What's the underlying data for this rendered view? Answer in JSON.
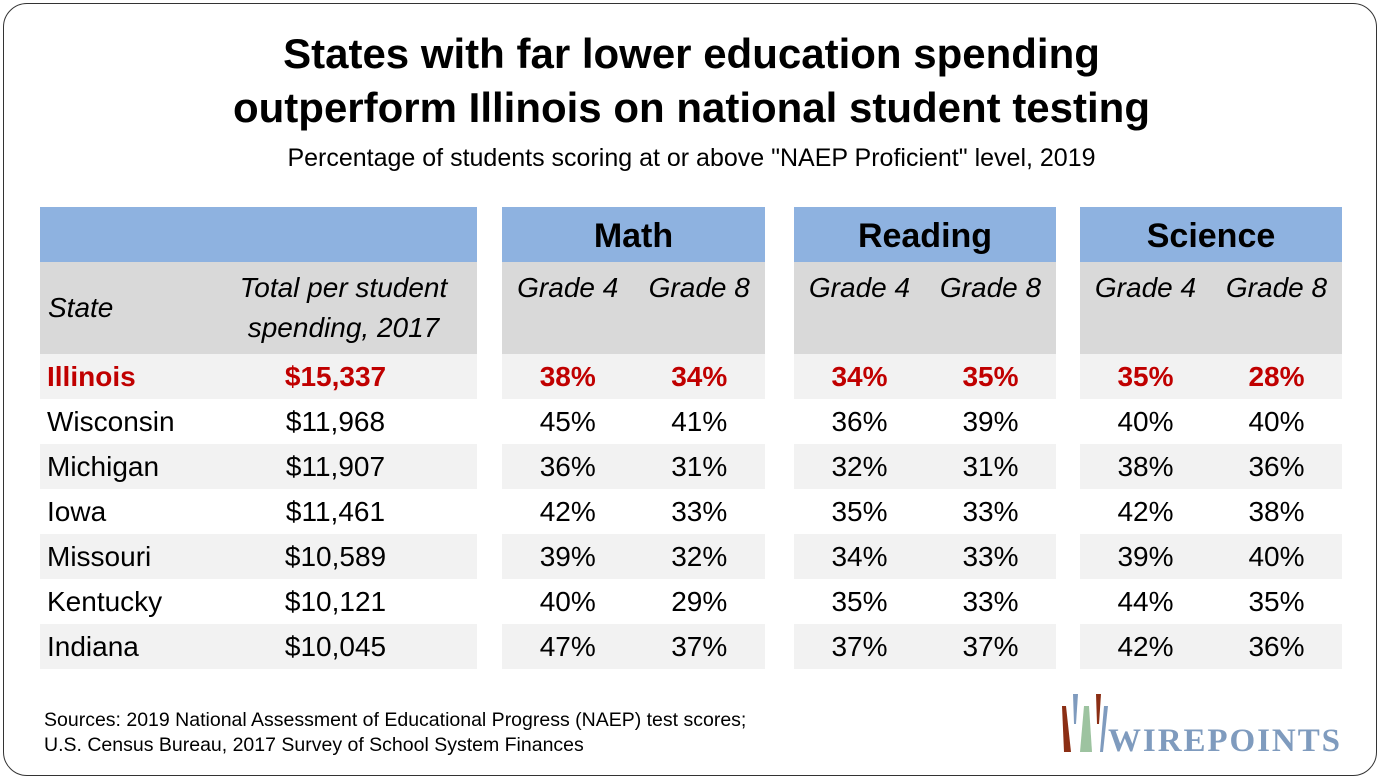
{
  "title_line1": "States with far lower education spending",
  "title_line2": "outperform Illinois on national student testing",
  "subtitle": "Percentage of students scoring at or above \"NAEP Proficient\" level, 2019",
  "headers": {
    "state": "State",
    "spending": "Total per student spending, 2017",
    "math": "Math",
    "reading": "Reading",
    "science": "Science",
    "grade4": "Grade 4",
    "grade8": "Grade 8"
  },
  "rows": [
    {
      "state": "Illinois",
      "spending": "$15,337",
      "math4": "38%",
      "math8": "34%",
      "read4": "34%",
      "read8": "35%",
      "sci4": "35%",
      "sci8": "28%"
    },
    {
      "state": "Wisconsin",
      "spending": "$11,968",
      "math4": "45%",
      "math8": "41%",
      "read4": "36%",
      "read8": "39%",
      "sci4": "40%",
      "sci8": "40%"
    },
    {
      "state": "Michigan",
      "spending": "$11,907",
      "math4": "36%",
      "math8": "31%",
      "read4": "32%",
      "read8": "31%",
      "sci4": "38%",
      "sci8": "36%"
    },
    {
      "state": "Iowa",
      "spending": "$11,461",
      "math4": "42%",
      "math8": "33%",
      "read4": "35%",
      "read8": "33%",
      "sci4": "42%",
      "sci8": "38%"
    },
    {
      "state": "Missouri",
      "spending": "$10,589",
      "math4": "39%",
      "math8": "32%",
      "read4": "34%",
      "read8": "33%",
      "sci4": "39%",
      "sci8": "40%"
    },
    {
      "state": "Kentucky",
      "spending": "$10,121",
      "math4": "40%",
      "math8": "29%",
      "read4": "35%",
      "read8": "33%",
      "sci4": "44%",
      "sci8": "35%"
    },
    {
      "state": "Indiana",
      "spending": "$10,045",
      "math4": "47%",
      "math8": "37%",
      "read4": "37%",
      "read8": "37%",
      "sci4": "42%",
      "sci8": "36%"
    }
  ],
  "sources_line1": "Sources: 2019 National Assessment of Educational Progress (NAEP) test scores;",
  "sources_line2": "U.S. Census Bureau, 2017 Survey of School System Finances",
  "logo_text": "WIREPOINTS",
  "colors": {
    "header_blue": "#8EB2E0",
    "header_gray": "#D9D9D9",
    "highlight": "#C00000"
  }
}
